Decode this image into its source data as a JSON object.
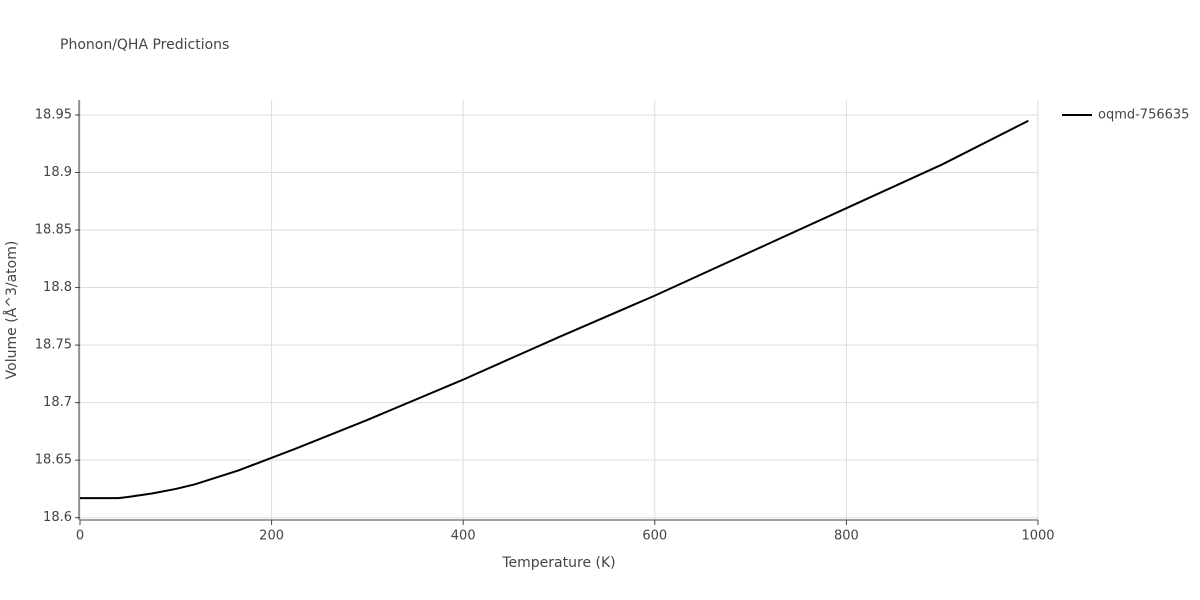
{
  "chart_data": {
    "type": "line",
    "title": "Phonon/QHA Predictions",
    "x_label": "Temperature (K)",
    "y_label": "Volume (Å^3/atom)",
    "x": [
      0,
      40,
      50,
      75,
      100,
      120,
      165,
      200,
      225,
      300,
      400,
      500,
      600,
      700,
      800,
      900,
      990
    ],
    "series": [
      {
        "name": "oqmd-756635",
        "color": "#000000",
        "values": [
          18.617,
          18.617,
          18.618,
          18.621,
          18.625,
          18.629,
          18.641,
          18.652,
          18.66,
          18.685,
          18.72,
          18.757,
          18.793,
          18.831,
          18.869,
          18.907,
          18.945
        ]
      }
    ],
    "xlim": [
      0,
      1000
    ],
    "xticks": [
      0,
      200,
      400,
      600,
      800,
      1000
    ],
    "ylim": [
      18.598,
      18.963
    ],
    "yticks": [
      18.6,
      18.65,
      18.7,
      18.75,
      18.8,
      18.85,
      18.9,
      18.95
    ],
    "grid": true,
    "legend": "top-right"
  }
}
